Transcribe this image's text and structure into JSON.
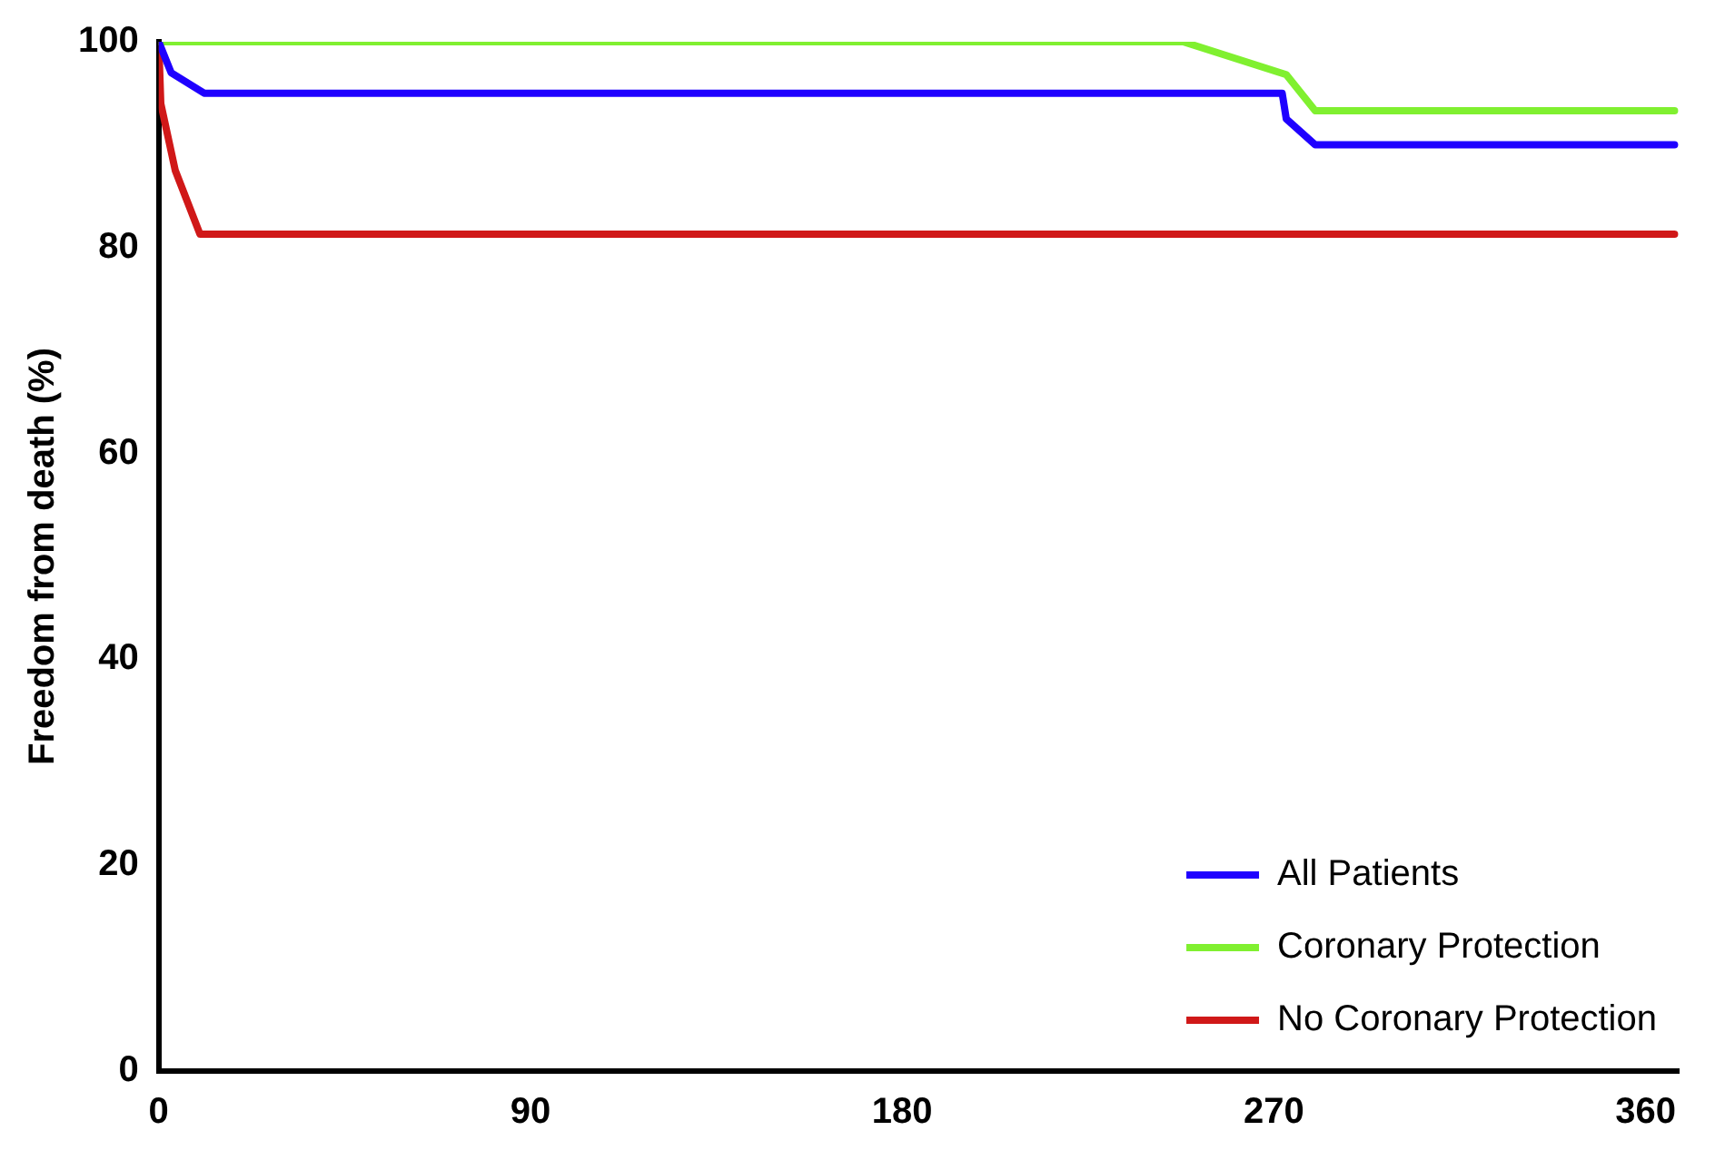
{
  "chart_data": {
    "type": "line",
    "ylabel": "Freedom from death (%)",
    "xlim": [
      0,
      368
    ],
    "xticks": [
      0,
      90,
      180,
      270,
      360
    ],
    "ylim": [
      0,
      100
    ],
    "yticks": [
      0,
      20,
      40,
      60,
      80,
      100
    ],
    "grid": false,
    "legend": "right",
    "marker": "none",
    "line_style": "solid",
    "series": [
      {
        "name": "All Patients",
        "color": "#1f00ff",
        "x": [
          0,
          3,
          11,
          272,
          273,
          280,
          367
        ],
        "values": [
          100,
          97,
          95,
          95,
          92.5,
          90,
          90
        ]
      },
      {
        "name": "Coronary Protection",
        "color": "#80f030",
        "x": [
          0,
          248,
          273,
          280,
          367
        ],
        "values": [
          100,
          100,
          96.8,
          93.3,
          93.3
        ]
      },
      {
        "name": "No Coronary Protection",
        "color": "#d01818",
        "x": [
          0,
          0.5,
          4,
          10,
          367
        ],
        "values": [
          100,
          94,
          87.5,
          81.3,
          81.3
        ]
      }
    ]
  }
}
